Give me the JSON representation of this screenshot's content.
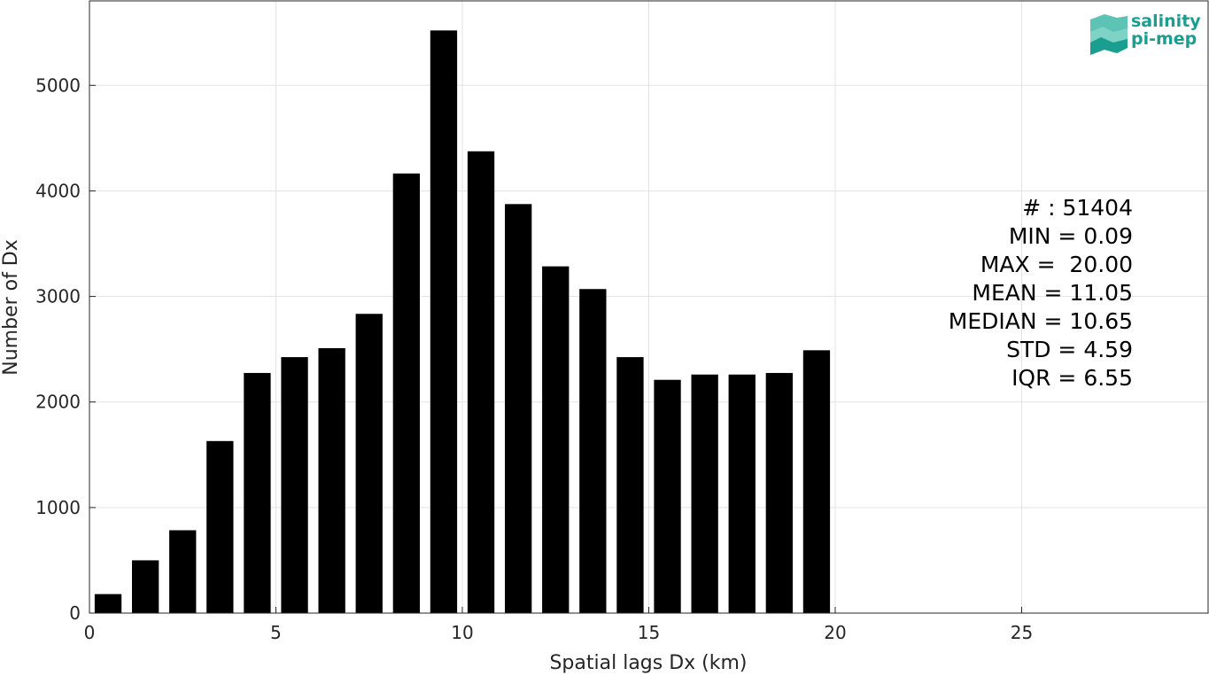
{
  "chart_data": {
    "type": "bar",
    "x": [
      0.5,
      1.5,
      2.5,
      3.5,
      4.5,
      5.5,
      6.5,
      7.5,
      8.5,
      9.5,
      10.5,
      11.5,
      12.5,
      13.5,
      14.5,
      15.5,
      16.5,
      17.5,
      18.5,
      19.5
    ],
    "values": [
      180,
      500,
      785,
      1630,
      2275,
      2425,
      2510,
      2835,
      4165,
      5520,
      4375,
      3875,
      3285,
      3070,
      2425,
      2210,
      2260,
      2260,
      2275,
      2490
    ],
    "title": "",
    "xlabel": "Spatial lags Dx (km)",
    "ylabel": "Number of Dx",
    "xlim": [
      0,
      30
    ],
    "ylim": [
      0,
      5800
    ],
    "xticks": [
      0,
      5,
      10,
      15,
      20,
      25
    ],
    "yticks": [
      0,
      1000,
      2000,
      3000,
      4000,
      5000
    ],
    "grid": true,
    "bar_color": "#000000",
    "stats": [
      "# : 51404",
      "MIN = 0.09",
      "MAX =  20.00",
      "MEAN = 11.05",
      "MEDIAN = 10.65",
      "STD = 4.59",
      "IQR = 6.55"
    ]
  },
  "logo": {
    "line1": "salinity",
    "line2": "pi-mep",
    "color": "#1a9e8f"
  }
}
